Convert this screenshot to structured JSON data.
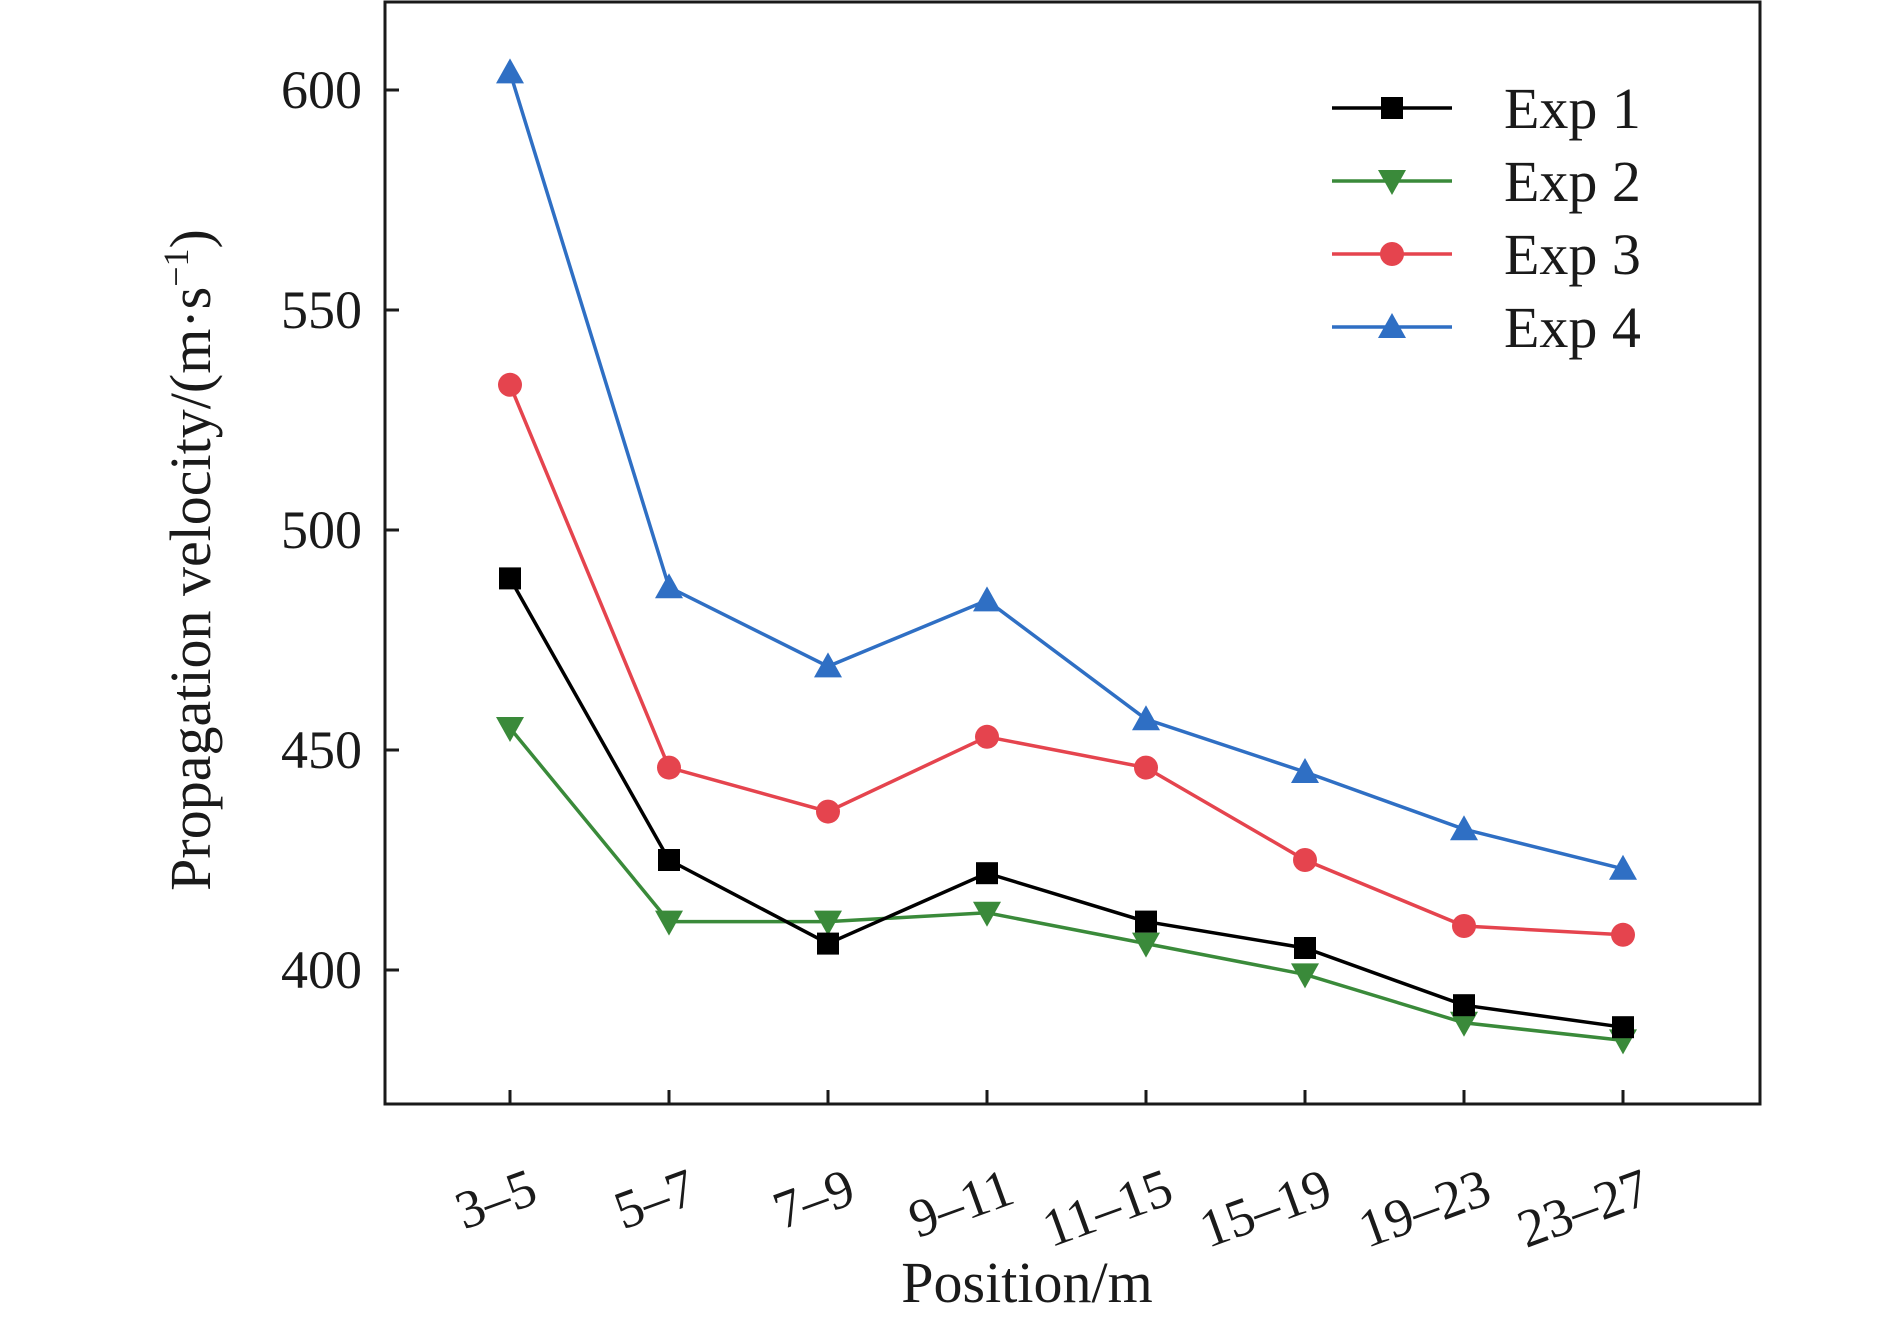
{
  "chart_data": {
    "type": "line",
    "title": "",
    "xlabel": "Position/m",
    "ylabel": "Propagation velocity/(m·s",
    "ylabel_sup": "−1",
    "ylabel_close": ")",
    "categories": [
      "3–5",
      "5–7",
      "7–9",
      "9–11",
      "11–15",
      "15–19",
      "19–23",
      "23–27"
    ],
    "yticks": [
      400,
      450,
      500,
      550,
      600
    ],
    "ylim": [
      370,
      620
    ],
    "grid": false,
    "legend_position": "top-right",
    "series": [
      {
        "name": "Exp 1",
        "color": "#000000",
        "marker": "square",
        "values": [
          489,
          425,
          406,
          422,
          411,
          405,
          392,
          387
        ]
      },
      {
        "name": "Exp 2",
        "color": "#3a8a3a",
        "marker": "triangle-down",
        "values": [
          455,
          411,
          411,
          413,
          406,
          399,
          388,
          384
        ]
      },
      {
        "name": "Exp 3",
        "color": "#e5444e",
        "marker": "circle",
        "values": [
          533,
          446,
          436,
          453,
          446,
          425,
          410,
          408
        ]
      },
      {
        "name": "Exp 4",
        "color": "#2f6fc4",
        "marker": "triangle-up",
        "values": [
          604,
          487,
          469,
          484,
          457,
          445,
          432,
          423
        ]
      }
    ]
  }
}
